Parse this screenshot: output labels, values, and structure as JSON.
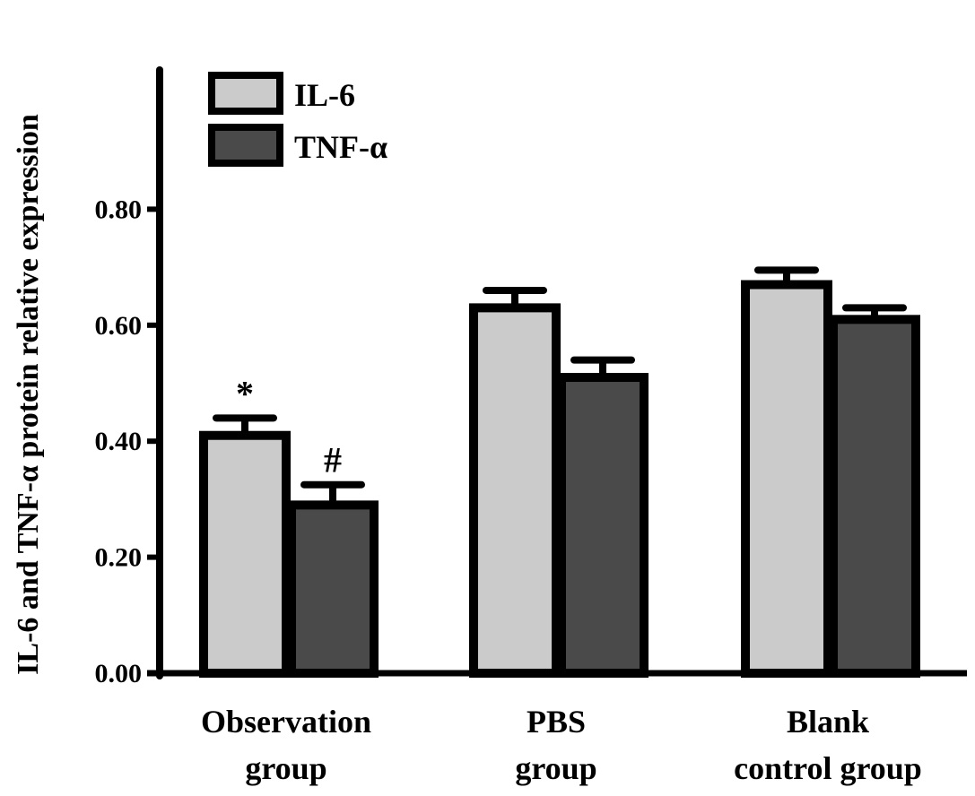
{
  "chart_data": {
    "type": "bar",
    "ylabel": "IL-6 and TNF-α protein relative expression",
    "xlabel": "",
    "categories": [
      [
        "Observation",
        "group"
      ],
      [
        "PBS",
        "group"
      ],
      [
        "Blank",
        "control group"
      ]
    ],
    "series": [
      {
        "name": "IL-6",
        "color": "#cbcbcb",
        "values": [
          0.41,
          0.63,
          0.67
        ],
        "errors": [
          0.03,
          0.03,
          0.025
        ],
        "annotations": [
          "*",
          "",
          ""
        ]
      },
      {
        "name": "TNF-α",
        "color": "#4a4a4a",
        "values": [
          0.29,
          0.51,
          0.61
        ],
        "errors": [
          0.035,
          0.03,
          0.02
        ],
        "annotations": [
          "#",
          "",
          ""
        ]
      }
    ],
    "ylim": [
      0,
      1.0
    ],
    "yticks": [
      0,
      0.2,
      0.4,
      0.6,
      0.8
    ],
    "ytick_labels": [
      "0.00",
      "0.20",
      "0.40",
      "0.60",
      "0.80"
    ],
    "legend_position": "top-left",
    "grid": false
  }
}
